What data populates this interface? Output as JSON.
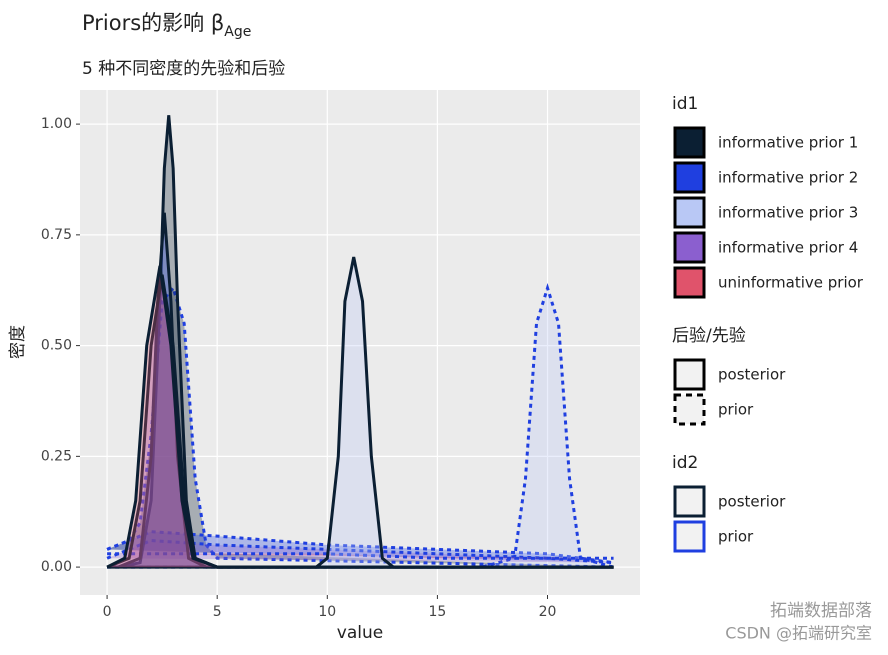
{
  "chart_data": {
    "type": "density",
    "title": "Priors的影响 β",
    "title_subscript": "Age",
    "subtitle": "5 种不同密度的先验和后验",
    "xlabel": "value",
    "ylabel": "密度",
    "xlim": [
      -1.23,
      24.2
    ],
    "ylim": [
      -0.063,
      1.077
    ],
    "xticks": [
      0,
      5,
      10,
      15,
      20
    ],
    "yticks": [
      {
        "value": 0,
        "label": "0.00"
      },
      {
        "value": 0.25,
        "label": "0.25"
      },
      {
        "value": 0.5,
        "label": "0.50"
      },
      {
        "value": 0.75,
        "label": "0.75"
      },
      {
        "value": 1,
        "label": "1.00"
      }
    ],
    "grid": true,
    "series": [
      {
        "fill": "#0b1f33",
        "line": "#1f3fe0",
        "dashed": true,
        "x": [
          0,
          1,
          1.5,
          2,
          2.5,
          3,
          3.5,
          4,
          4.5,
          5,
          23
        ],
        "values": [
          0.04,
          0.06,
          0.1,
          0.3,
          0.6,
          0.63,
          0.55,
          0.2,
          0.05,
          0.02,
          0
        ]
      },
      {
        "fill": "#1f3fe0",
        "line": "#1f3fe0",
        "dashed": true,
        "x": [
          0,
          2,
          5,
          10,
          15,
          20,
          23
        ],
        "values": [
          0.04,
          0.08,
          0.07,
          0.05,
          0.04,
          0.03,
          0.01
        ]
      },
      {
        "fill": "#b9c8f5",
        "line": "#1f3fe0",
        "dashed": true,
        "x": [
          0,
          17,
          18.5,
          19,
          19.5,
          20,
          20.5,
          21,
          21.5,
          23
        ],
        "values": [
          0,
          0,
          0.02,
          0.2,
          0.55,
          0.63,
          0.55,
          0.2,
          0.02,
          0
        ]
      },
      {
        "fill": "#8b5fcf",
        "line": "#1f3fe0",
        "dashed": true,
        "x": [
          0,
          2,
          5,
          10,
          15,
          20,
          23
        ],
        "values": [
          0.02,
          0.06,
          0.05,
          0.04,
          0.03,
          0.02,
          0.01
        ]
      },
      {
        "fill": "#e0536b",
        "line": "#1f3fe0",
        "dashed": true,
        "x": [
          0,
          1,
          5,
          10,
          15,
          20,
          23
        ],
        "values": [
          0.03,
          0.03,
          0.03,
          0.03,
          0.02,
          0.02,
          0.02
        ]
      },
      {
        "fill": "#0b1f33",
        "line": "#0b1f33",
        "dashed": false,
        "x": [
          0.5,
          1.5,
          2,
          2.4,
          2.6,
          2.8,
          3,
          3.2,
          3.6,
          4,
          5,
          23
        ],
        "values": [
          0,
          0.01,
          0.15,
          0.6,
          0.9,
          1.02,
          0.9,
          0.6,
          0.15,
          0.02,
          0,
          0
        ]
      },
      {
        "fill": "#1f3fe0",
        "line": "#0b1f33",
        "dashed": false,
        "x": [
          0.5,
          1.5,
          2,
          2.3,
          2.6,
          2.9,
          3.2,
          3.7,
          4.5,
          23
        ],
        "values": [
          0,
          0.02,
          0.25,
          0.6,
          0.8,
          0.6,
          0.25,
          0.02,
          0,
          0
        ]
      },
      {
        "fill": "#b9c8f5",
        "line": "#0b1f33",
        "dashed": false,
        "x": [
          0,
          9.5,
          10,
          10.5,
          10.8,
          11.2,
          11.6,
          12,
          12.5,
          13,
          23
        ],
        "values": [
          0,
          0,
          0.02,
          0.25,
          0.6,
          0.7,
          0.6,
          0.25,
          0.02,
          0,
          0
        ]
      },
      {
        "fill": "#8b5fcf",
        "line": "#0b1f33",
        "dashed": false,
        "x": [
          0,
          1,
          1.5,
          2,
          2.5,
          3,
          3.5,
          4,
          5,
          23
        ],
        "values": [
          0,
          0.02,
          0.15,
          0.5,
          0.66,
          0.5,
          0.15,
          0.02,
          0,
          0
        ]
      },
      {
        "fill": "#e0536b",
        "line": "#0b1f33",
        "dashed": false,
        "x": [
          0,
          0.8,
          1.3,
          1.8,
          2.4,
          2.9,
          3.4,
          3.9,
          5,
          23
        ],
        "values": [
          0,
          0.02,
          0.15,
          0.5,
          0.68,
          0.5,
          0.15,
          0.02,
          0,
          0
        ]
      }
    ],
    "legends": [
      {
        "title": "id1",
        "entries": [
          {
            "label": "informative prior 1",
            "fill": "#0b1f33"
          },
          {
            "label": "informative prior 2",
            "fill": "#1f3fe0"
          },
          {
            "label": "informative prior 3",
            "fill": "#b9c8f5"
          },
          {
            "label": "informative prior 4",
            "fill": "#8b5fcf"
          },
          {
            "label": "uninformative prior",
            "fill": "#e0536b"
          }
        ]
      },
      {
        "title": "后验/先验",
        "entries": [
          {
            "label": "posterior",
            "dashed": false
          },
          {
            "label": "prior",
            "dashed": true
          }
        ]
      },
      {
        "title": "id2",
        "entries": [
          {
            "label": "posterior",
            "line": "#0b1f33"
          },
          {
            "label": "prior",
            "line": "#1f3fe0"
          }
        ]
      }
    ]
  },
  "watermark": [
    "拓端数据部落",
    "CSDN @拓端研究室"
  ]
}
